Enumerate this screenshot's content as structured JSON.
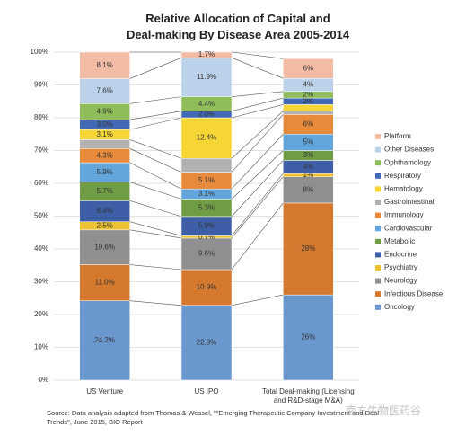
{
  "chart_data": {
    "type": "stacked-bar",
    "title": "Relative Allocation of Capital and\nDeal-making By Disease Area 2005-2014",
    "categories": [
      "US Venture",
      "US IPO",
      "Total Deal-making (Licensing\nand R&D-stage M&A)"
    ],
    "ylim": [
      0,
      100
    ],
    "yticks": [
      {
        "value": 0,
        "label": "0%"
      },
      {
        "value": 10,
        "label": "10%"
      },
      {
        "value": 20,
        "label": "20%"
      },
      {
        "value": 30,
        "label": "30%"
      },
      {
        "value": 40,
        "label": "40%"
      },
      {
        "value": 50,
        "label": "50%"
      },
      {
        "value": 60,
        "label": "60%"
      },
      {
        "value": 70,
        "label": "70%"
      },
      {
        "value": 80,
        "label": "80%"
      },
      {
        "value": 90,
        "label": "90%"
      },
      {
        "value": 100,
        "label": "100%"
      }
    ],
    "series": [
      {
        "name": "Oncology",
        "color": "#6b97cf",
        "values": [
          24.2,
          22.8,
          26
        ],
        "value_labels": [
          "24.2%",
          "22.8%",
          "26%"
        ]
      },
      {
        "name": "Infectious Disease",
        "color": "#d5792f",
        "values": [
          11.0,
          10.9,
          28
        ],
        "value_labels": [
          "11.0%",
          "10.9%",
          "28%"
        ]
      },
      {
        "name": "Neurology",
        "color": "#8f8f8f",
        "values": [
          10.6,
          9.6,
          8
        ],
        "value_labels": [
          "10.6%",
          "9.6%",
          "8%"
        ]
      },
      {
        "name": "Psychiatry",
        "color": "#ecc232",
        "values": [
          2.5,
          0.7,
          1
        ],
        "value_labels": [
          "2.5%",
          "0.7%",
          "1%"
        ]
      },
      {
        "name": "Endocrine",
        "color": "#3f5ea8",
        "values": [
          6.4,
          5.9,
          4
        ],
        "value_labels": [
          "6.4%",
          "5.9%",
          "4%"
        ]
      },
      {
        "name": "Metabolic",
        "color": "#6f9c44",
        "values": [
          5.7,
          5.3,
          3
        ],
        "value_labels": [
          "5.7%",
          "5.3%",
          "3%"
        ]
      },
      {
        "name": "Cardiovascular",
        "color": "#62a6dc",
        "values": [
          5.9,
          3.1,
          5
        ],
        "value_labels": [
          "5.9%",
          "3.1%",
          "5%"
        ]
      },
      {
        "name": "Immunology",
        "color": "#e88a3c",
        "values": [
          4.3,
          5.1,
          6
        ],
        "value_labels": [
          "4.3%",
          "5.1%",
          "6%"
        ]
      },
      {
        "name": "Gastrointestinal",
        "color": "#b1b1b1",
        "values": [
          2.7,
          4.2,
          1
        ],
        "value_labels": [
          null,
          null,
          null
        ]
      },
      {
        "name": "Hematology",
        "color": "#f6d635",
        "values": [
          3.1,
          12.4,
          2
        ],
        "value_labels": [
          "3.1%",
          "12.4%",
          null
        ]
      },
      {
        "name": "Respiratory",
        "color": "#4169b5",
        "values": [
          3.0,
          2.0,
          2
        ],
        "value_labels": [
          "3.0%",
          "2.0%",
          "2%"
        ]
      },
      {
        "name": "Ophthamology",
        "color": "#8fbd5a",
        "values": [
          4.9,
          4.4,
          2
        ],
        "value_labels": [
          "4.9%",
          "4.4%",
          "2%"
        ]
      },
      {
        "name": "Other Diseases",
        "color": "#bcd2ea",
        "values": [
          7.6,
          11.9,
          4
        ],
        "value_labels": [
          "7.6%",
          "11.9%",
          "4%"
        ]
      },
      {
        "name": "Platform",
        "color": "#f2bba4",
        "values": [
          8.1,
          1.7,
          6
        ],
        "value_labels": [
          "8.1%",
          "1.7%",
          "6%"
        ]
      }
    ],
    "source": "Source: Data analysis adapted from Thomas & Wessel, \"\"Emerging Therapeutic Company Investment and Deal\nTrends\", June 2015, BIO Report",
    "watermark": "南方生物医药谷"
  }
}
